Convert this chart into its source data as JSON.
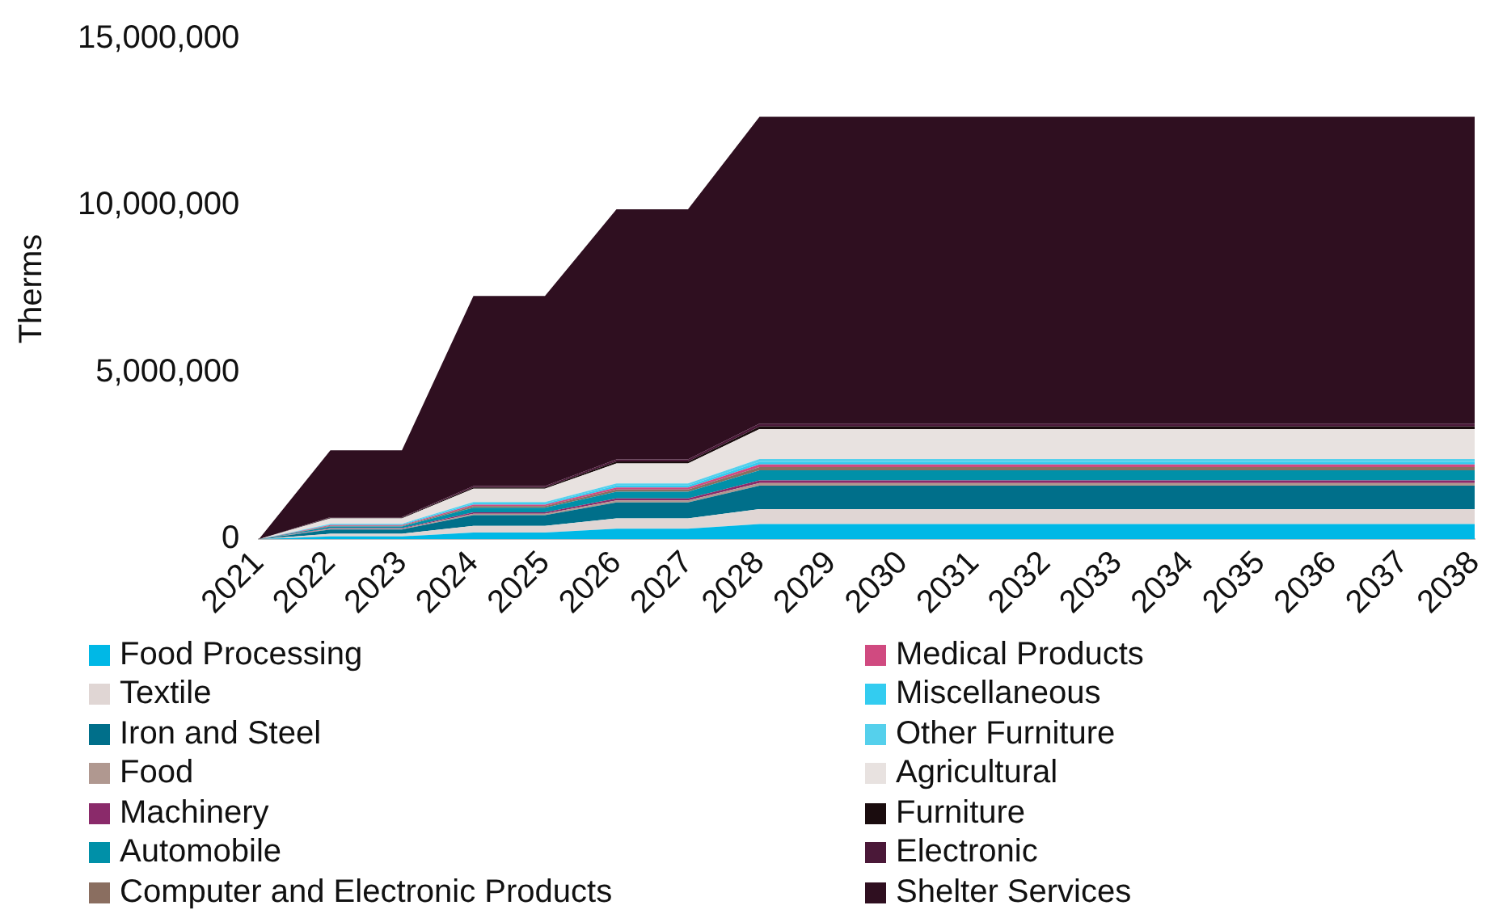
{
  "chart_data": {
    "type": "area",
    "stacked": true,
    "ylabel": "Therms",
    "ylim": [
      0,
      15000000
    ],
    "yticks": [
      0,
      {
        "value": 5000000,
        "label": "5,000,000"
      },
      {
        "value": 10000000,
        "label": "10,000,000"
      },
      {
        "value": 15000000,
        "label": "15,000,000"
      }
    ],
    "grid": false,
    "legend": "bottom",
    "marker": "none",
    "categories": [
      "2021",
      "2022",
      "2023",
      "2024",
      "2025",
      "2026",
      "2027",
      "2028",
      "2029",
      "2030",
      "2031",
      "2032",
      "2033",
      "2034",
      "2035",
      "2036",
      "2037",
      "2038"
    ],
    "series": [
      {
        "name": "Food Processing",
        "color": "#00b8e6",
        "values": [
          0,
          80000,
          80000,
          200000,
          200000,
          310000,
          310000,
          450000,
          450000,
          450000,
          450000,
          450000,
          450000,
          450000,
          450000,
          450000,
          450000,
          450000
        ]
      },
      {
        "name": "Textile",
        "color": "#e0d6d4",
        "values": [
          0,
          80000,
          80000,
          200000,
          200000,
          310000,
          310000,
          450000,
          450000,
          450000,
          450000,
          450000,
          450000,
          450000,
          450000,
          450000,
          450000,
          450000
        ]
      },
      {
        "name": "Iron and Steel",
        "color": "#006f8a",
        "values": [
          0,
          130000,
          130000,
          320000,
          320000,
          480000,
          480000,
          700000,
          700000,
          700000,
          700000,
          700000,
          700000,
          700000,
          700000,
          700000,
          700000,
          700000
        ]
      },
      {
        "name": "Food",
        "color": "#b09890",
        "values": [
          0,
          20000,
          20000,
          40000,
          40000,
          60000,
          60000,
          80000,
          80000,
          80000,
          80000,
          80000,
          80000,
          80000,
          80000,
          80000,
          80000,
          80000
        ]
      },
      {
        "name": "Machinery",
        "color": "#8a2a6a",
        "values": [
          0,
          20000,
          20000,
          40000,
          40000,
          60000,
          60000,
          80000,
          80000,
          80000,
          80000,
          80000,
          80000,
          80000,
          80000,
          80000,
          80000,
          80000
        ]
      },
      {
        "name": "Automobile",
        "color": "#0090a8",
        "values": [
          0,
          50000,
          50000,
          140000,
          140000,
          200000,
          200000,
          300000,
          300000,
          300000,
          300000,
          300000,
          300000,
          300000,
          300000,
          300000,
          300000,
          300000
        ]
      },
      {
        "name": "Computer and Electronic Products",
        "color": "#8a6e60",
        "values": [
          0,
          20000,
          20000,
          50000,
          50000,
          70000,
          70000,
          100000,
          100000,
          100000,
          100000,
          100000,
          100000,
          100000,
          100000,
          100000,
          100000,
          100000
        ]
      },
      {
        "name": "Medical Products",
        "color": "#d04a80",
        "values": [
          0,
          20000,
          20000,
          40000,
          40000,
          60000,
          60000,
          80000,
          80000,
          80000,
          80000,
          80000,
          80000,
          80000,
          80000,
          80000,
          80000,
          80000
        ]
      },
      {
        "name": "Miscellaneous",
        "color": "#33ccf0",
        "values": [
          0,
          20000,
          20000,
          40000,
          40000,
          60000,
          60000,
          80000,
          80000,
          80000,
          80000,
          80000,
          80000,
          80000,
          80000,
          80000,
          80000,
          80000
        ]
      },
      {
        "name": "Other Furniture",
        "color": "#55d0ec",
        "values": [
          0,
          20000,
          20000,
          40000,
          40000,
          60000,
          60000,
          80000,
          80000,
          80000,
          80000,
          80000,
          80000,
          80000,
          80000,
          80000,
          80000,
          80000
        ]
      },
      {
        "name": "Agricultural",
        "color": "#e8e2e0",
        "values": [
          0,
          160000,
          160000,
          400000,
          400000,
          600000,
          600000,
          900000,
          900000,
          900000,
          900000,
          900000,
          900000,
          900000,
          900000,
          900000,
          900000,
          900000
        ]
      },
      {
        "name": "Furniture",
        "color": "#1a0c0e",
        "values": [
          0,
          20000,
          20000,
          40000,
          40000,
          60000,
          60000,
          80000,
          80000,
          80000,
          80000,
          80000,
          80000,
          80000,
          80000,
          80000,
          80000,
          80000
        ]
      },
      {
        "name": "Electronic",
        "color": "#4a1838",
        "values": [
          0,
          20000,
          20000,
          40000,
          40000,
          60000,
          60000,
          80000,
          80000,
          80000,
          80000,
          80000,
          80000,
          80000,
          80000,
          80000,
          80000,
          80000
        ]
      },
      {
        "name": "Shelter Services",
        "color": "#2f0f20",
        "values": [
          0,
          2000000,
          2000000,
          5700000,
          5700000,
          7500000,
          7500000,
          9200000,
          9200000,
          9200000,
          9200000,
          9200000,
          9200000,
          9200000,
          9200000,
          9200000,
          9200000,
          9200000
        ]
      }
    ]
  }
}
